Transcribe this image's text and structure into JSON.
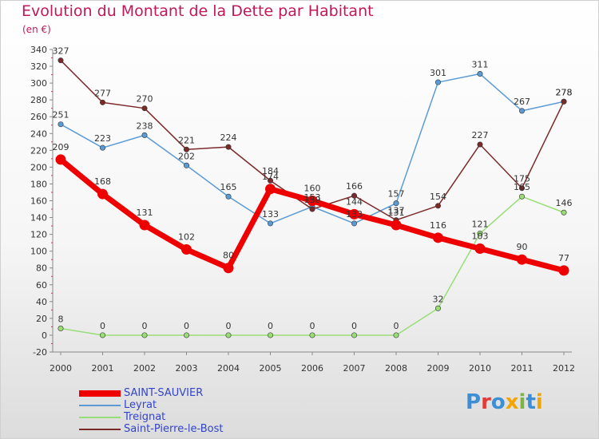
{
  "title": "Evolution du Montant de la Dette par Habitant",
  "unit_label": "(en €)",
  "logo": {
    "text": "Proxiti",
    "letter_colors": [
      "#3a8fd6",
      "#e53935",
      "#3a8fd6",
      "#f2a500",
      "#7cb342",
      "#3a8fd6",
      "#f2a500"
    ]
  },
  "chart_data": {
    "type": "line",
    "x": [
      "2000",
      "2001",
      "2002",
      "2003",
      "2004",
      "2005",
      "2006",
      "2007",
      "2008",
      "2009",
      "2010",
      "2011",
      "2012"
    ],
    "ylim": [
      -20,
      340
    ],
    "yticks": [
      -20,
      0,
      20,
      40,
      60,
      80,
      100,
      120,
      140,
      160,
      180,
      200,
      220,
      240,
      260,
      280,
      300,
      320,
      340
    ],
    "grid": false,
    "legend_position": "bottom-left",
    "series": [
      {
        "name": "Treignat",
        "color": "#99dd77",
        "values": [
          8,
          0,
          0,
          0,
          0,
          0,
          0,
          0,
          0,
          32,
          121,
          165,
          146
        ],
        "labels": [
          "8",
          "0",
          "0",
          "0",
          "0",
          "0",
          "0",
          "0",
          "0",
          "32",
          "121",
          "165",
          "146"
        ]
      },
      {
        "name": "Leyrat",
        "color": "#5b9bd5",
        "values": [
          251,
          223,
          238,
          202,
          165,
          133,
          153,
          133,
          157,
          301,
          311,
          267,
          278
        ],
        "labels": [
          "251",
          "223",
          "238",
          "202",
          "165",
          "133",
          "153",
          "133",
          "157",
          "301",
          "311",
          "267",
          "278"
        ]
      },
      {
        "name": "Saint-Pierre-le-Bost",
        "color": "#7b2a2a",
        "values": [
          327,
          277,
          270,
          221,
          224,
          184,
          150,
          166,
          137,
          154,
          227,
          175,
          278
        ],
        "labels": [
          "327",
          "277",
          "270",
          "221",
          "224",
          "184",
          "150",
          "166",
          "137",
          "154",
          "227",
          "175",
          "278"
        ]
      },
      {
        "name": "SAINT-SAUVIER",
        "color": "#ee0000",
        "values": [
          209,
          168,
          131,
          102,
          80,
          174,
          160,
          144,
          131,
          116,
          103,
          90,
          77
        ],
        "labels": [
          "209",
          "168",
          "131",
          "102",
          "80",
          "174",
          "160",
          "144",
          "131",
          "116",
          "103",
          "90",
          "77"
        ]
      }
    ],
    "legend_order": [
      "SAINT-SAUVIER",
      "Leyrat",
      "Treignat",
      "Saint-Pierre-le-Bost"
    ]
  }
}
